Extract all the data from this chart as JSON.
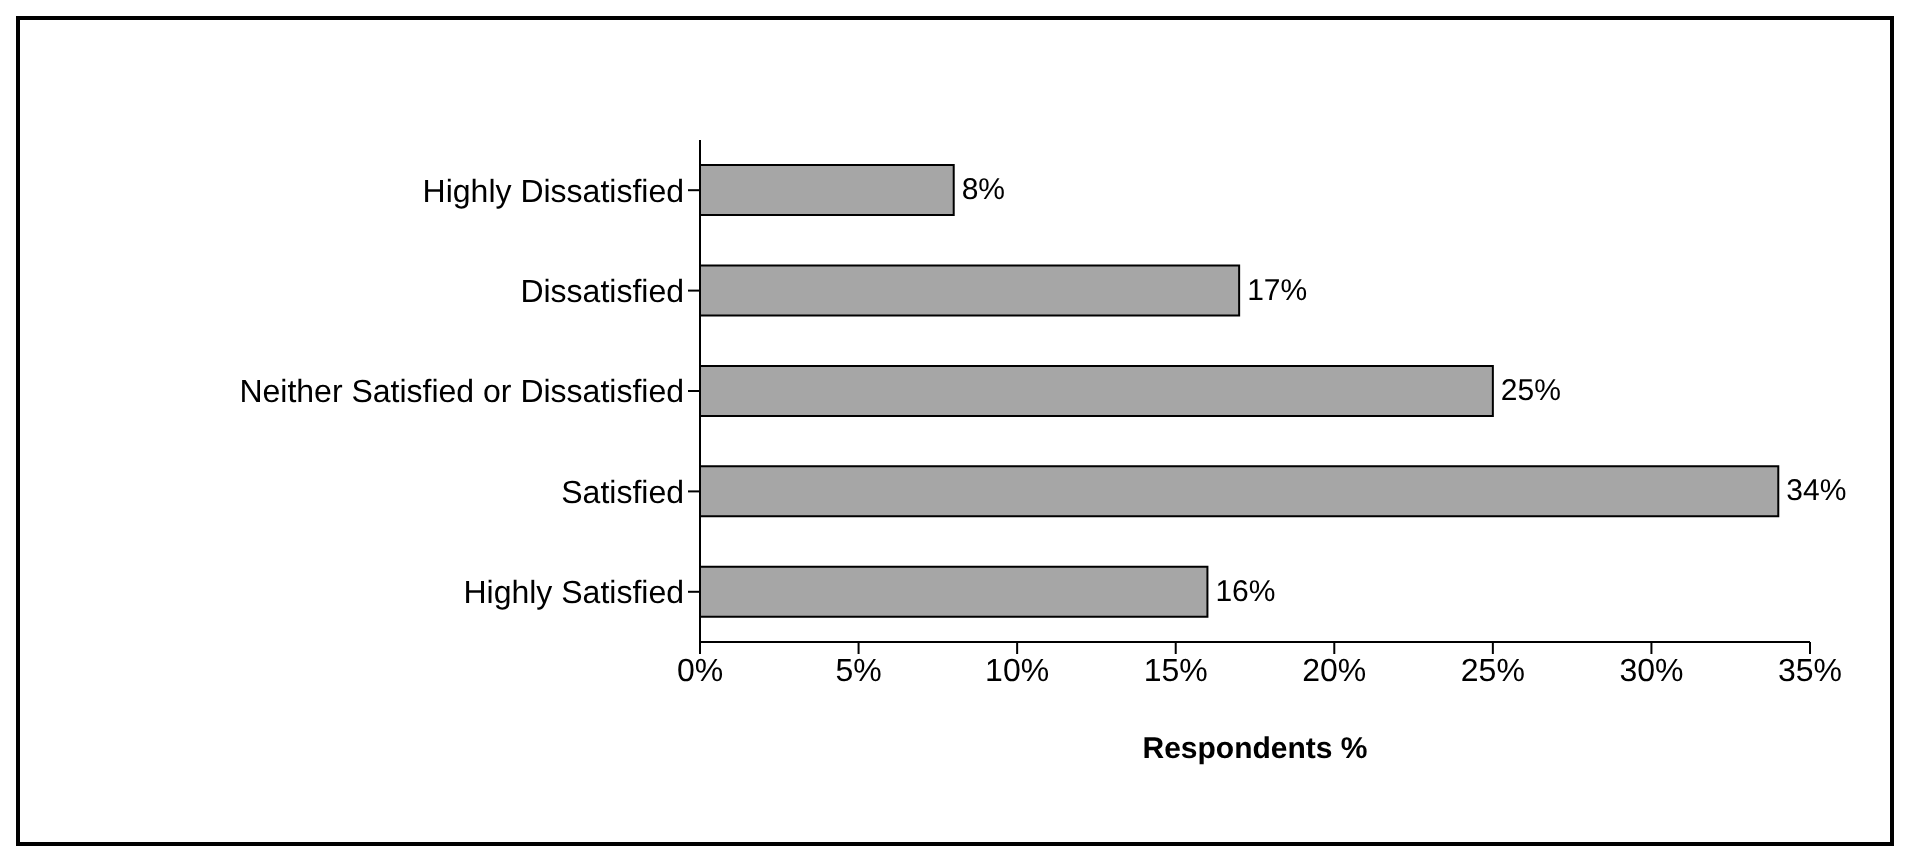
{
  "chart_data": {
    "type": "bar",
    "orientation": "horizontal",
    "xlabel": "Respondents %",
    "categories": [
      "Highly Dissatisfied",
      "Dissatisfied",
      "Neither Satisfied or Dissatisfied",
      "Satisfied",
      "Highly Satisfied"
    ],
    "values": [
      8,
      17,
      25,
      34,
      16
    ],
    "value_labels": [
      "8%",
      "17%",
      "25%",
      "34%",
      "16%"
    ],
    "color": "#a6a6a6",
    "xlim": [
      0,
      35
    ],
    "xticks": [
      {
        "value": 0,
        "label": "0%"
      },
      {
        "value": 5,
        "label": "5%"
      },
      {
        "value": 10,
        "label": "10%"
      },
      {
        "value": 15,
        "label": "15%"
      },
      {
        "value": 20,
        "label": "20%"
      },
      {
        "value": 25,
        "label": "25%"
      },
      {
        "value": 30,
        "label": "30%"
      },
      {
        "value": 35,
        "label": "35%"
      }
    ],
    "grid": false,
    "legend": false
  }
}
